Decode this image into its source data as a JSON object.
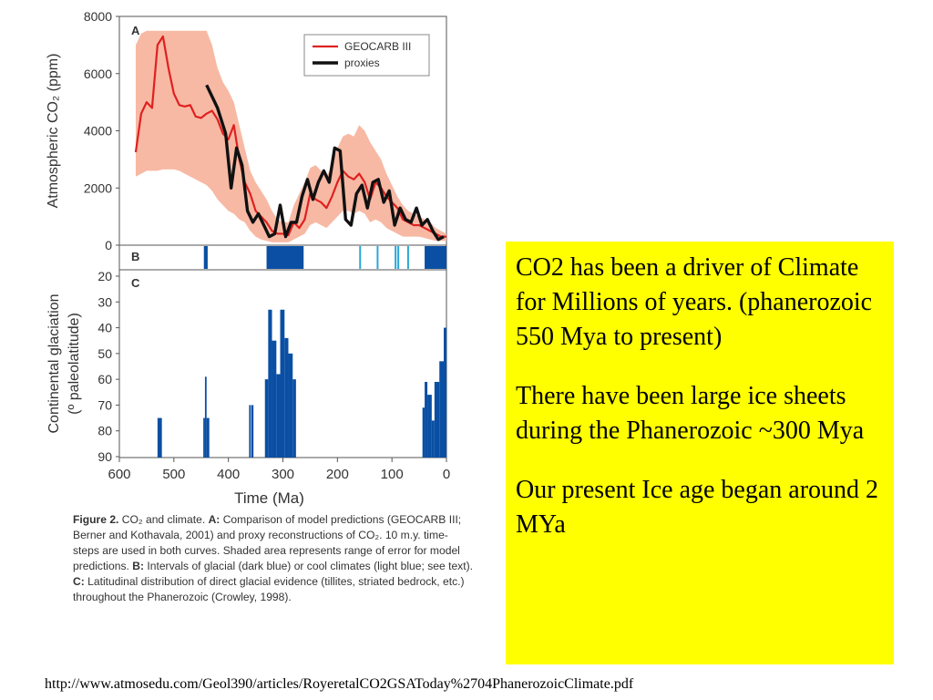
{
  "figure_caption": {
    "fig_label": "Figure 2.",
    "lead": "CO₂ and climate.",
    "a_label": "A:",
    "a_text": "Comparison of model predictions (GEOCARB III; Berner and Kothavala, 2001) and proxy reconstructions of CO₂. 10 m.y. time-steps are used in both curves. Shaded area represents range of error for model predictions.",
    "b_label": "B:",
    "b_text": "Intervals of glacial (dark blue) or cool climates (light blue; see text).",
    "c_label": "C:",
    "c_text": "Latitudinal distribution of direct glacial evidence (tillites, striated bedrock, etc.) throughout the Phanerozoic (Crowley, 1998)."
  },
  "text_box": {
    "para1": "CO2 has been a driver of Climate for Millions of years. (phanerozoic 550 Mya to present)",
    "para2": "There have been large ice sheets during the Phanerozoic ~300 Mya",
    "para3": "Our present Ice age began around 2 MYa"
  },
  "source_url": "http://www.atmosedu.com/Geol390/articles/RoyeretalCO2GSAToday%2704PhanerozoicClimate.pdf",
  "colors": {
    "geocarb": "#e02020",
    "proxies": "#111111",
    "error_band": "#f7b9a4",
    "glacial_dark": "#0a4fa3",
    "cool_light": "#2aa7d8",
    "textbox_bg": "#ffff00"
  },
  "chart_data": [
    {
      "panel": "A",
      "type": "line",
      "ylabel": "Atmospheric CO₂ (ppm)",
      "ylim": [
        0,
        8000
      ],
      "yticks": [
        0,
        2000,
        4000,
        6000,
        8000
      ],
      "xlim": [
        600,
        0
      ],
      "legend_position": "top-right",
      "series": [
        {
          "name": "GEOCARB III",
          "x": [
            570,
            560,
            550,
            540,
            530,
            520,
            510,
            500,
            490,
            480,
            470,
            460,
            450,
            440,
            430,
            420,
            410,
            400,
            390,
            380,
            370,
            360,
            350,
            340,
            330,
            320,
            310,
            300,
            290,
            280,
            270,
            260,
            250,
            240,
            230,
            220,
            210,
            200,
            190,
            180,
            170,
            160,
            150,
            140,
            130,
            120,
            110,
            100,
            90,
            80,
            70,
            60,
            50,
            40,
            30,
            20,
            10,
            0
          ],
          "values": [
            3250,
            4600,
            5000,
            4800,
            7000,
            7300,
            6200,
            5300,
            4900,
            4850,
            4900,
            4500,
            4450,
            4600,
            4700,
            4400,
            3900,
            3700,
            4200,
            3000,
            2200,
            1800,
            1200,
            1000,
            800,
            500,
            400,
            400,
            350,
            800,
            600,
            900,
            1800,
            1600,
            1500,
            1300,
            1700,
            2200,
            2600,
            2400,
            2300,
            2500,
            2200,
            1600,
            2200,
            2000,
            1700,
            1500,
            1300,
            900,
            800,
            700,
            700,
            600,
            500,
            400,
            300,
            300
          ]
        },
        {
          "name": "proxies",
          "x": [
            440,
            420,
            405,
            395,
            385,
            375,
            365,
            355,
            345,
            335,
            325,
            315,
            305,
            295,
            285,
            275,
            265,
            255,
            245,
            235,
            225,
            215,
            205,
            195,
            185,
            175,
            165,
            155,
            145,
            135,
            125,
            115,
            105,
            95,
            85,
            75,
            65,
            55,
            45,
            35,
            25,
            15,
            5
          ],
          "values": [
            5600,
            4800,
            3900,
            2000,
            3400,
            2800,
            1200,
            800,
            1100,
            700,
            300,
            400,
            1400,
            300,
            800,
            800,
            1700,
            2300,
            1600,
            2200,
            2600,
            2200,
            3400,
            3300,
            900,
            700,
            1800,
            2100,
            1300,
            2200,
            2300,
            1500,
            1900,
            700,
            1300,
            900,
            800,
            1300,
            700,
            900,
            500,
            200,
            300
          ]
        }
      ],
      "error_band": {
        "x": [
          570,
          560,
          550,
          540,
          530,
          520,
          510,
          500,
          490,
          480,
          470,
          460,
          450,
          440,
          430,
          420,
          410,
          400,
          390,
          380,
          370,
          360,
          350,
          340,
          330,
          320,
          310,
          300,
          290,
          280,
          270,
          260,
          250,
          240,
          230,
          220,
          210,
          200,
          190,
          180,
          170,
          160,
          150,
          140,
          130,
          120,
          110,
          100,
          90,
          80,
          70,
          60,
          50,
          40,
          30,
          20,
          10,
          0
        ],
        "upper": [
          7000,
          7400,
          7500,
          7500,
          7500,
          7500,
          7500,
          7500,
          7500,
          7500,
          7500,
          7500,
          7500,
          7500,
          7000,
          6200,
          5700,
          5400,
          5000,
          4200,
          3400,
          2600,
          2200,
          1900,
          1600,
          1200,
          900,
          800,
          800,
          1400,
          1800,
          2200,
          2700,
          2800,
          2600,
          2400,
          2800,
          3400,
          3800,
          3900,
          3800,
          4200,
          4000,
          3600,
          3300,
          3000,
          2500,
          2100,
          1700,
          1400,
          1200,
          1100,
          1000,
          900,
          800,
          600,
          500,
          400
        ],
        "lower": [
          2400,
          2500,
          2600,
          2600,
          2600,
          2650,
          2650,
          2650,
          2600,
          2500,
          2400,
          2300,
          2200,
          2100,
          1900,
          1600,
          1400,
          1200,
          1100,
          900,
          800,
          500,
          300,
          200,
          150,
          100,
          100,
          100,
          100,
          200,
          300,
          400,
          700,
          800,
          700,
          600,
          800,
          1000,
          1200,
          1200,
          1100,
          1200,
          1100,
          800,
          900,
          800,
          600,
          500,
          400,
          300,
          300,
          300,
          300,
          250,
          200,
          150,
          150,
          150
        ]
      }
    },
    {
      "panel": "B",
      "type": "bar",
      "glacial_intervals": [
        [
          445,
          438
        ],
        [
          330,
          262
        ],
        [
          40,
          0
        ]
      ],
      "cool_intervals": [
        [
          160,
          157
        ],
        [
          128,
          125
        ],
        [
          95,
          92
        ],
        [
          90,
          87
        ],
        [
          72,
          70
        ]
      ]
    },
    {
      "panel": "C",
      "type": "bar",
      "ylabel": "Continental glaciation (º paleolatitude)",
      "ylim": [
        20,
        90
      ],
      "yticks": [
        20,
        30,
        40,
        50,
        60,
        70,
        80,
        90
      ],
      "xlabel": "Time (Ma)",
      "xlim": [
        600,
        0
      ],
      "xticks": [
        600,
        500,
        400,
        300,
        200,
        100,
        0
      ],
      "bars": [
        {
          "from": 530,
          "to": 522,
          "value": 75
        },
        {
          "from": 446,
          "to": 443,
          "value": 75
        },
        {
          "from": 443,
          "to": 440,
          "value": 59
        },
        {
          "from": 440,
          "to": 435,
          "value": 75
        },
        {
          "from": 362,
          "to": 359,
          "value": 70
        },
        {
          "from": 358,
          "to": 354,
          "value": 70
        },
        {
          "from": 333,
          "to": 327,
          "value": 60
        },
        {
          "from": 327,
          "to": 320,
          "value": 33
        },
        {
          "from": 320,
          "to": 312,
          "value": 45
        },
        {
          "from": 312,
          "to": 305,
          "value": 58
        },
        {
          "from": 305,
          "to": 297,
          "value": 33
        },
        {
          "from": 297,
          "to": 290,
          "value": 44
        },
        {
          "from": 290,
          "to": 282,
          "value": 50
        },
        {
          "from": 282,
          "to": 276,
          "value": 60
        },
        {
          "from": 44,
          "to": 40,
          "value": 71
        },
        {
          "from": 40,
          "to": 35,
          "value": 61
        },
        {
          "from": 35,
          "to": 27,
          "value": 66
        },
        {
          "from": 27,
          "to": 22,
          "value": 76
        },
        {
          "from": 22,
          "to": 13,
          "value": 61
        },
        {
          "from": 13,
          "to": 5,
          "value": 53
        },
        {
          "from": 5,
          "to": 0,
          "value": 40
        }
      ]
    }
  ],
  "panel_labels": {
    "a": "A",
    "b": "B",
    "c": "C"
  }
}
